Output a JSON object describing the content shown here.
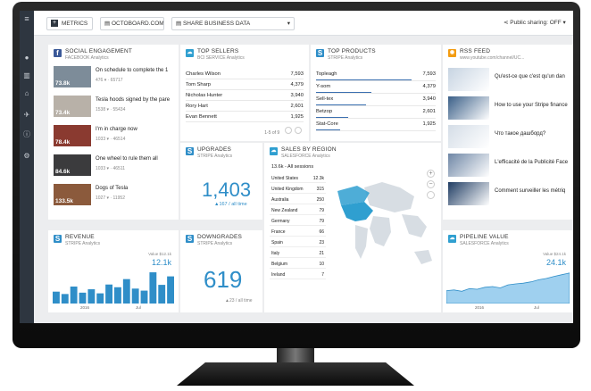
{
  "topbar": {
    "metrics_label": "METRICS",
    "site_label": "OCTOBOARD.COM",
    "share_label": "SHARE BUSINESS DATA",
    "public_sharing": "Public sharing: OFF"
  },
  "social": {
    "title": "SOCIAL ENGAGEMENT",
    "subtitle": "FACEBOOK Analytics",
    "items": [
      {
        "value": "73.8k",
        "text": "On schedule to complete the 1",
        "meta": "476 ▾ · 65717",
        "color": "#7d8c99"
      },
      {
        "value": "73.4k",
        "text": "Tesla hoods signed by the pare",
        "meta": "1538 ▾ · 55434",
        "color": "#b8b1a8"
      },
      {
        "value": "78.4k",
        "text": "I'm in charge now",
        "meta": "1033 ▾ · 46514",
        "color": "#8a3a30"
      },
      {
        "value": "84.6k",
        "text": "One wheel to rule them all",
        "meta": "1033 ▾ · 46511",
        "color": "#3b3b3d"
      },
      {
        "value": "133.5k",
        "text": "Dogs of Tesla",
        "meta": "1027 ▾ · 11952",
        "color": "#8b5a3c"
      }
    ]
  },
  "sellers": {
    "title": "TOP SELLERS",
    "subtitle": "BCI SERVICE Analytics",
    "rows": [
      {
        "name": "Charles Wilson",
        "value": "7,593"
      },
      {
        "name": "Tom Sharp",
        "value": "4,379"
      },
      {
        "name": "Nicholas Hunter",
        "value": "3,940"
      },
      {
        "name": "Rory Hart",
        "value": "2,601"
      },
      {
        "name": "Evan Bennett",
        "value": "1,925"
      }
    ],
    "pager": "1-5 of 9"
  },
  "products": {
    "title": "TOP PRODUCTS",
    "subtitle": "STRIPE Analytics",
    "rows": [
      {
        "name": "Topleagh",
        "value": "7,593",
        "frac": 1.0
      },
      {
        "name": "Y-som",
        "value": "4,379",
        "frac": 0.58
      },
      {
        "name": "Sell-tex",
        "value": "3,940",
        "frac": 0.52
      },
      {
        "name": "Betzop",
        "value": "2,601",
        "frac": 0.34
      },
      {
        "name": "Stat-Core",
        "value": "1,925",
        "frac": 0.25
      }
    ]
  },
  "rss": {
    "title": "RSS FEED",
    "url": "www.youtube.com/channel/UC...",
    "items": [
      {
        "text": "Qu'est-ce que c'est qu'un dan",
        "color": "#c7d4e2"
      },
      {
        "text": "How to use your Stripe finance",
        "color": "#3a5f88"
      },
      {
        "text": "Что такое дашборд?",
        "color": "#d4dde7"
      },
      {
        "text": "L'efficacité de la Publicité Face",
        "color": "#6f87a6"
      },
      {
        "text": "Comment surveiller les métriq",
        "color": "#1f3c63"
      }
    ]
  },
  "upgrades": {
    "title": "UPGRADES",
    "subtitle": "STRIPE Analytics",
    "value": "1,403",
    "delta": "▲167 / all time"
  },
  "region": {
    "title": "SALES BY REGION",
    "subtitle": "SALESFORCE Analytics",
    "summary": "13.6k - All sessions",
    "rows": [
      {
        "name": "United States",
        "value": "12.3k"
      },
      {
        "name": "United Kingdom",
        "value": "315"
      },
      {
        "name": "Australia",
        "value": "250"
      },
      {
        "name": "New Zealand",
        "value": "79"
      },
      {
        "name": "Germany",
        "value": "79"
      },
      {
        "name": "France",
        "value": "66"
      },
      {
        "name": "Spain",
        "value": "23"
      },
      {
        "name": "Italy",
        "value": "21"
      },
      {
        "name": "Belgium",
        "value": "10"
      },
      {
        "name": "Ireland",
        "value": "7"
      }
    ]
  },
  "revenue": {
    "title": "REVENUE",
    "subtitle": "STRIPE Analytics",
    "value": "12.1k",
    "value_label": "Value $12.1k",
    "x_labels": [
      "2016",
      "Jul"
    ],
    "bars": [
      0.35,
      0.28,
      0.5,
      0.32,
      0.42,
      0.3,
      0.56,
      0.48,
      0.72,
      0.44,
      0.38,
      0.92,
      0.55,
      0.8
    ]
  },
  "downgrades": {
    "title": "DOWNGRADES",
    "subtitle": "STRIPE Analytics",
    "value": "619",
    "delta": "▲23 / all time"
  },
  "pipeline": {
    "title": "PIPELINE VALUE",
    "subtitle": "SALESFORCE Analytics",
    "value": "24.1k",
    "value_label": "Value $24.1k",
    "x_labels": [
      "2016",
      "Jul"
    ],
    "points": [
      0.38,
      0.4,
      0.36,
      0.44,
      0.42,
      0.48,
      0.5,
      0.46,
      0.55,
      0.58,
      0.6,
      0.64,
      0.7,
      0.74,
      0.8,
      0.85,
      0.9
    ]
  },
  "colors": {
    "accent": "#2f8ec8",
    "sidebar": "#2e3640",
    "map_highlight": "#2f9fd0"
  }
}
